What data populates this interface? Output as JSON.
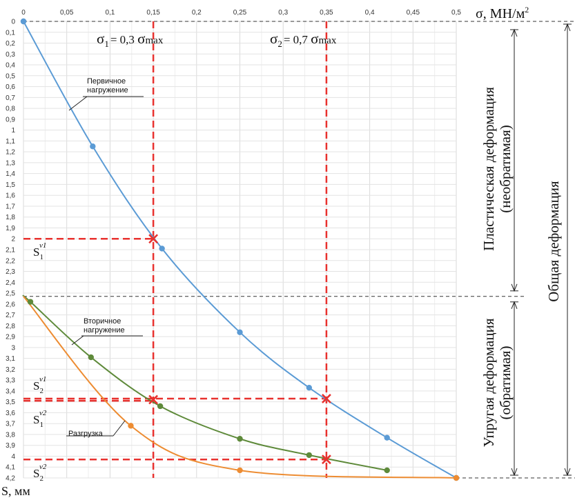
{
  "chart_data": {
    "type": "line",
    "x_axis": {
      "label": "σ, МН/м",
      "label_sup": "2",
      "min": 0,
      "max": 0.5,
      "step": 0.05,
      "ticks": [
        "0",
        "0,05",
        "0,1",
        "0,15",
        "0,2",
        "0,25",
        "0,3",
        "0,35",
        "0,4",
        "0,45",
        "0,5"
      ]
    },
    "y_axis": {
      "label": "S, мм",
      "min": 0,
      "max": 4.2,
      "step": 0.1,
      "inverted": true,
      "ticks": [
        "0",
        "0,1",
        "0,2",
        "0,3",
        "0,4",
        "0,5",
        "0,6",
        "0,7",
        "0,8",
        "0,9",
        "1",
        "1,1",
        "1,2",
        "1,3",
        "1,4",
        "1,5",
        "1,6",
        "1,7",
        "1,8",
        "1,9",
        "2",
        "2,1",
        "2,2",
        "2,3",
        "2,4",
        "2,5",
        "2,6",
        "2,7",
        "2,8",
        "2,9",
        "3",
        "3,1",
        "3,2",
        "3,3",
        "3,4",
        "3,5",
        "3,6",
        "3,7",
        "3,8",
        "3,9",
        "4",
        "4,1",
        "4,2"
      ]
    },
    "grid": true,
    "series": [
      {
        "label_lines": [
          "Первичное",
          "нагружение"
        ],
        "color": "#5b9bd5",
        "points": [
          [
            0,
            0
          ],
          [
            0.08,
            1.15
          ],
          [
            0.16,
            2.09
          ],
          [
            0.25,
            2.86
          ],
          [
            0.33,
            3.37
          ],
          [
            0.42,
            3.83
          ],
          [
            0.5,
            4.2
          ]
        ]
      },
      {
        "label_lines": [
          "Вторичное",
          "нагружение"
        ],
        "color": "#5e8a3a",
        "points": [
          [
            0.008,
            2.58
          ],
          [
            0.078,
            3.09
          ],
          [
            0.158,
            3.54
          ],
          [
            0.25,
            3.84
          ],
          [
            0.33,
            3.99
          ],
          [
            0.42,
            4.13
          ]
        ],
        "start": [
          0,
          2.53
        ]
      },
      {
        "label_lines": [
          "Разгрузка"
        ],
        "color": "#ed8c32",
        "points": [
          [
            0.124,
            3.72
          ],
          [
            0.25,
            4.13
          ],
          [
            0.5,
            4.2
          ]
        ],
        "start": [
          0,
          2.53
        ]
      }
    ],
    "verticals": [
      {
        "x": 0.15,
        "label": "σ",
        "sub": "1",
        "text": "=  0,3",
        "tail": "σ",
        "tail_sub": "max"
      },
      {
        "x": 0.35,
        "label": "σ",
        "sub": "2",
        "text": "=  0,7",
        "tail": "σ",
        "tail_sub": "max"
      }
    ],
    "horizontals": [
      {
        "y": 2.0,
        "x_end": 0.15,
        "label": "S",
        "sub": "1",
        "sup": "ν1"
      },
      {
        "y": 3.47,
        "x_end": 0.35,
        "label": "S",
        "sub": "2",
        "sup": "ν1"
      },
      {
        "y": 3.49,
        "x_end": 0.15,
        "label": "S",
        "sub": "1",
        "sup": "ν2"
      },
      {
        "y": 4.03,
        "x_end": 0.35,
        "label": "S",
        "sub": "2",
        "sup": "ν2"
      }
    ],
    "crosses": [
      [
        0.15,
        2.0
      ],
      [
        0.15,
        3.48
      ],
      [
        0.35,
        3.47
      ],
      [
        0.35,
        4.03
      ]
    ],
    "right_annotations": {
      "plastic": [
        "Пластическая    деформация",
        "(необратимая)"
      ],
      "elastic": [
        "Упругая    деформация",
        "(обратимая)"
      ],
      "total": "Общая деформация"
    }
  }
}
